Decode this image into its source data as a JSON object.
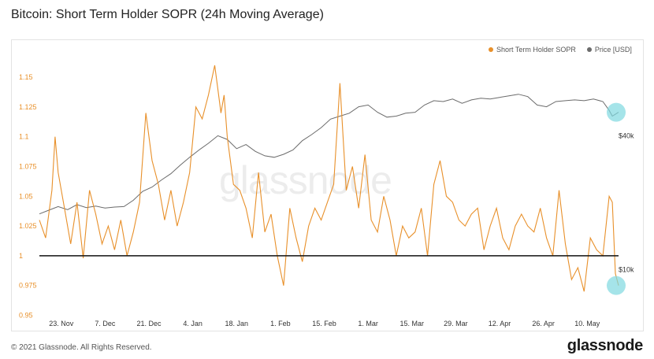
{
  "title": "Bitcoin: Short Term Holder SOPR (24h Moving Average)",
  "footer": {
    "copyright": "© 2021 Glassnode. All Rights Reserved.",
    "logo": "glassnode"
  },
  "watermark": "glassnode",
  "colors": {
    "sopr": "#e8902a",
    "price": "#6b6b6b",
    "baseline": "#111111",
    "highlight": "#7fd9df"
  },
  "chart_data": {
    "type": "line",
    "title": "Bitcoin: Short Term Holder SOPR (24h Moving Average)",
    "legend_position": "top-right",
    "grid": false,
    "x_labels": [
      "23. Nov",
      "7. Dec",
      "21. Dec",
      "4. Jan",
      "18. Jan",
      "1. Feb",
      "15. Feb",
      "1. Mar",
      "15. Mar",
      "29. Mar",
      "12. Apr",
      "26. Apr",
      "10. May"
    ],
    "y_left_ticks": [
      "1.15",
      "1.125",
      "1.1",
      "1.075",
      "1.05",
      "1.025",
      "1",
      "0.975",
      "0.95"
    ],
    "y_left_range": [
      0.947,
      1.162
    ],
    "y_right_ticks": [
      "$40k",
      "$10k"
    ],
    "x_range_days": [
      0,
      185
    ],
    "baseline_value": 1,
    "series": [
      {
        "name": "Short Term Holder SOPR",
        "axis": "left",
        "x": [
          0,
          2,
          4,
          5,
          6,
          8,
          10,
          12,
          14,
          16,
          18,
          20,
          22,
          24,
          26,
          28,
          30,
          32,
          34,
          36,
          38,
          40,
          42,
          44,
          46,
          48,
          50,
          52,
          54,
          56,
          57,
          58,
          59,
          60,
          62,
          64,
          66,
          68,
          70,
          72,
          74,
          76,
          78,
          80,
          82,
          84,
          86,
          88,
          90,
          92,
          94,
          96,
          98,
          100,
          102,
          104,
          106,
          108,
          110,
          112,
          114,
          116,
          118,
          120,
          122,
          124,
          126,
          128,
          130,
          132,
          134,
          136,
          138,
          140,
          142,
          144,
          146,
          148,
          150,
          152,
          154,
          156,
          158,
          160,
          162,
          164,
          166,
          168,
          170,
          172,
          174,
          176,
          178,
          180,
          182,
          183,
          184,
          185
        ],
        "y": [
          1.03,
          1.015,
          1.055,
          1.1,
          1.07,
          1.04,
          1.01,
          1.045,
          0.998,
          1.055,
          1.035,
          1.01,
          1.025,
          1.005,
          1.03,
          1.0,
          1.02,
          1.045,
          1.12,
          1.08,
          1.06,
          1.03,
          1.055,
          1.025,
          1.045,
          1.07,
          1.125,
          1.115,
          1.135,
          1.16,
          1.14,
          1.12,
          1.135,
          1.1,
          1.06,
          1.055,
          1.04,
          1.015,
          1.07,
          1.02,
          1.035,
          1.0,
          0.975,
          1.04,
          1.015,
          0.995,
          1.025,
          1.04,
          1.03,
          1.045,
          1.06,
          1.145,
          1.055,
          1.075,
          1.04,
          1.085,
          1.03,
          1.02,
          1.05,
          1.03,
          1.0,
          1.025,
          1.015,
          1.02,
          1.04,
          1.0,
          1.06,
          1.08,
          1.05,
          1.045,
          1.03,
          1.025,
          1.035,
          1.04,
          1.005,
          1.025,
          1.04,
          1.015,
          1.005,
          1.025,
          1.035,
          1.025,
          1.02,
          1.04,
          1.015,
          1.0,
          1.055,
          1.01,
          0.98,
          0.99,
          0.97,
          1.015,
          1.005,
          1.0,
          1.05,
          1.045,
          0.985,
          0.975
        ]
      },
      {
        "name": "Price [USD]",
        "axis": "right",
        "x": [
          0,
          3,
          6,
          9,
          12,
          15,
          18,
          21,
          24,
          27,
          30,
          33,
          36,
          39,
          42,
          45,
          48,
          51,
          54,
          57,
          60,
          63,
          66,
          69,
          72,
          75,
          78,
          81,
          84,
          87,
          90,
          93,
          96,
          99,
          102,
          105,
          108,
          111,
          114,
          117,
          120,
          123,
          126,
          129,
          132,
          135,
          138,
          141,
          144,
          147,
          150,
          153,
          156,
          159,
          162,
          165,
          168,
          171,
          174,
          177,
          180,
          182,
          183,
          185
        ],
        "y": [
          17800,
          18500,
          19200,
          18600,
          19600,
          19000,
          19300,
          18900,
          19100,
          19200,
          20500,
          22500,
          23500,
          25300,
          27000,
          29500,
          32000,
          34500,
          37000,
          40000,
          38500,
          35000,
          36500,
          34000,
          32500,
          32000,
          33000,
          34500,
          38000,
          40500,
          43500,
          47500,
          49000,
          50500,
          54000,
          55000,
          51000,
          48500,
          49000,
          50500,
          51000,
          55000,
          57500,
          57000,
          58500,
          56000,
          58000,
          59000,
          58500,
          59500,
          60500,
          61500,
          60000,
          55000,
          54000,
          57000,
          57500,
          58000,
          57500,
          58500,
          57000,
          52000,
          49000,
          51000
        ]
      }
    ]
  }
}
